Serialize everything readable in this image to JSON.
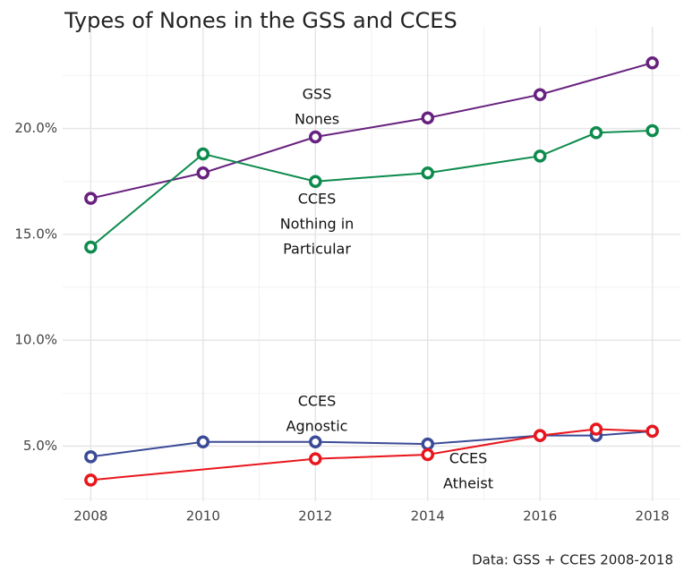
{
  "chart_data": {
    "type": "line",
    "title": "Types of Nones in the GSS and CCES",
    "caption": "Data: GSS + CCES 2008-2018",
    "xlim": [
      2007.5,
      2018.5
    ],
    "ylim": [
      2.4,
      24.8
    ],
    "xticks": [
      2008,
      2010,
      2012,
      2014,
      2016,
      2018
    ],
    "yticks": [
      {
        "value": 5,
        "label": "5.0%"
      },
      {
        "value": 10,
        "label": "10.0%"
      },
      {
        "value": 15,
        "label": "15.0%"
      },
      {
        "value": 20,
        "label": "20.0%"
      }
    ],
    "x_minor_ticks": [
      2009,
      2011,
      2013,
      2015,
      2017
    ],
    "y_minor_ticks": [
      2.5,
      7.5,
      12.5,
      17.5,
      22.5
    ],
    "grid": true,
    "series": [
      {
        "name": [
          "GSS",
          "Nones"
        ],
        "color": "#67217e",
        "x": [
          2008,
          2010,
          2012,
          2014,
          2016,
          2018
        ],
        "values": [
          16.7,
          17.9,
          19.6,
          20.5,
          21.6,
          23.1
        ]
      },
      {
        "name": [
          "CCES",
          "Nothing in",
          "Particular"
        ],
        "color": "#0d8b4d",
        "x": [
          2008,
          2010,
          2012,
          2014,
          2016,
          2017,
          2018
        ],
        "values": [
          14.4,
          18.8,
          17.5,
          17.9,
          18.7,
          19.8,
          19.9
        ]
      },
      {
        "name": [
          "CCES",
          "Agnostic"
        ],
        "color": "#3b4a96",
        "x": [
          2008,
          2010,
          2012,
          2014,
          2016,
          2017,
          2018
        ],
        "values": [
          4.5,
          5.2,
          5.2,
          5.1,
          5.5,
          5.5,
          5.7
        ]
      },
      {
        "name": [
          "CCES",
          "Atheist"
        ],
        "color": "#e8161c",
        "x": [
          2008,
          2012,
          2014,
          2016,
          2017,
          2018
        ],
        "values": [
          3.4,
          4.4,
          4.6,
          5.5,
          5.8,
          5.7
        ]
      }
    ]
  }
}
